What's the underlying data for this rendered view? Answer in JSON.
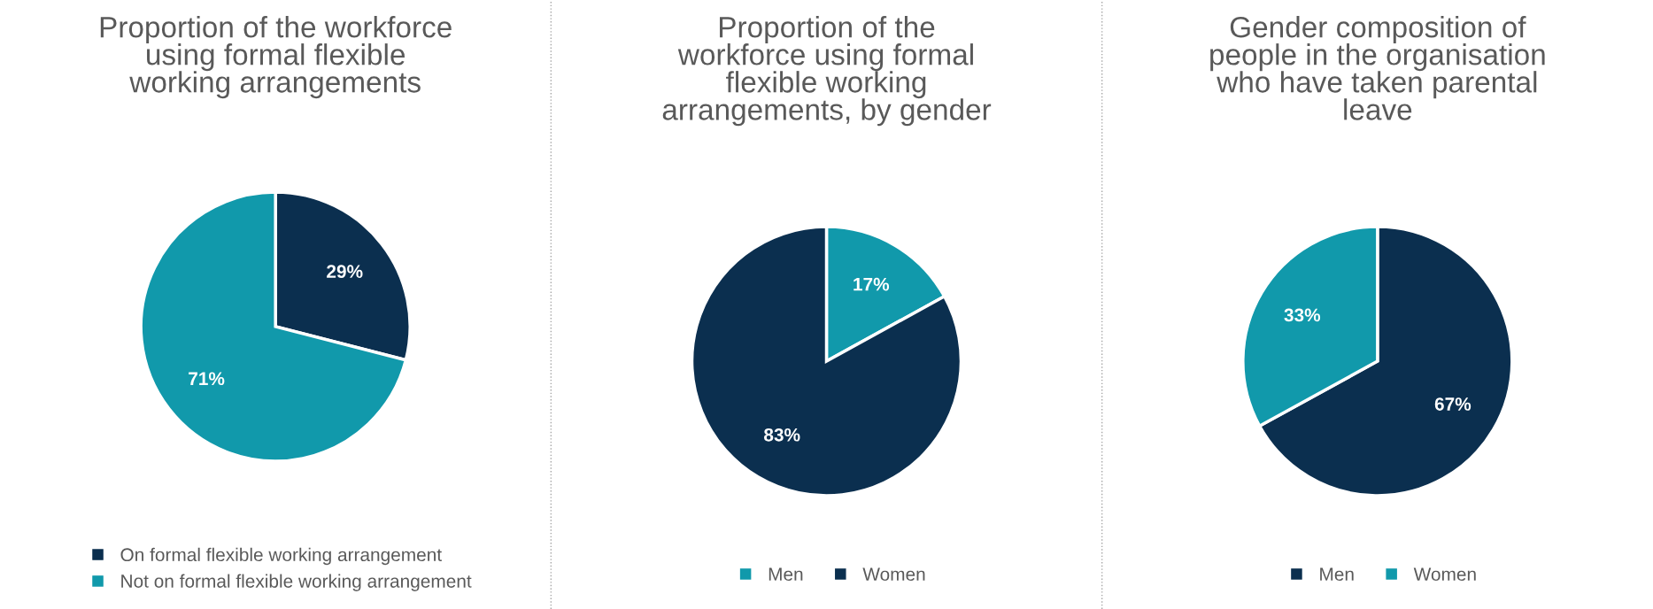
{
  "chart_data": [
    {
      "type": "pie",
      "title": "Proportion of the workforce\nusing formal flexible\nworking arrangements",
      "categories": [
        "On formal flexible working arrangement",
        "Not on formal flexible working arrangement"
      ],
      "values": [
        29,
        71
      ],
      "colors": [
        "#0b2f4f",
        "#1199ab"
      ],
      "value_labels": [
        "29%",
        "71%"
      ],
      "legend": "bottom",
      "marker": "square"
    },
    {
      "type": "pie",
      "title": "Proportion of the\nworkforce using formal\nflexible working\narrangements, by gender",
      "categories": [
        "Men",
        "Women"
      ],
      "values": [
        17,
        83
      ],
      "colors": [
        "#1199ab",
        "#0b2f4f"
      ],
      "value_labels": [
        "17%",
        "83%"
      ],
      "legend": "bottom",
      "marker": "square"
    },
    {
      "type": "pie",
      "title": "Gender composition of\npeople in the organisation\nwho have taken parental\nleave",
      "categories": [
        "Men",
        "Women"
      ],
      "values": [
        67,
        33
      ],
      "colors": [
        "#0b2f4f",
        "#1199ab"
      ],
      "value_labels": [
        "67%",
        "33%"
      ],
      "legend": "bottom",
      "marker": "square"
    }
  ]
}
